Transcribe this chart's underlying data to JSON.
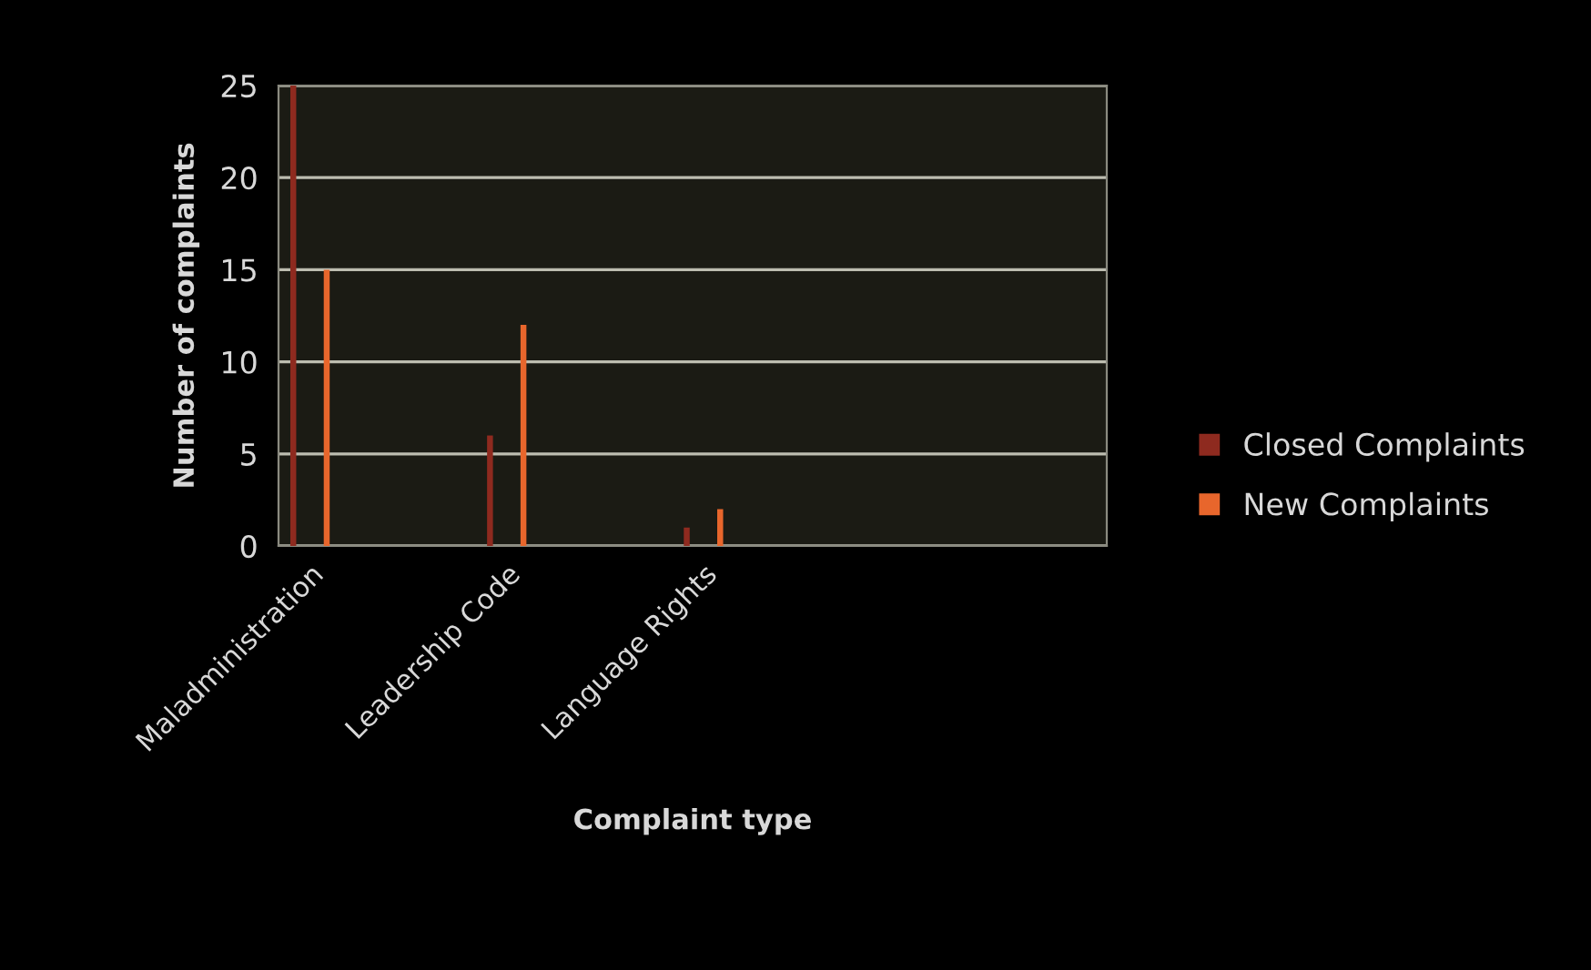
{
  "chart_data": {
    "type": "bar",
    "xlabel": "Complaint type",
    "ylabel": "Number of complaints",
    "categories": [
      "Maladministration",
      "Leadership Code",
      "Language Rights"
    ],
    "series": [
      {
        "name": "Closed Complaints",
        "color": "#8e2a1f",
        "values": [
          25,
          6,
          1
        ]
      },
      {
        "name": "New Complaints",
        "color": "#e8662c",
        "values": [
          15,
          12,
          2
        ]
      }
    ],
    "bands": [
      {
        "axis": "y",
        "from": 0,
        "to": 25,
        "color": "#1b1b14"
      }
    ],
    "ylim": [
      0,
      25
    ],
    "yticks": [
      0,
      5,
      10,
      15,
      20,
      25
    ],
    "grid": "y",
    "legend": "right"
  }
}
